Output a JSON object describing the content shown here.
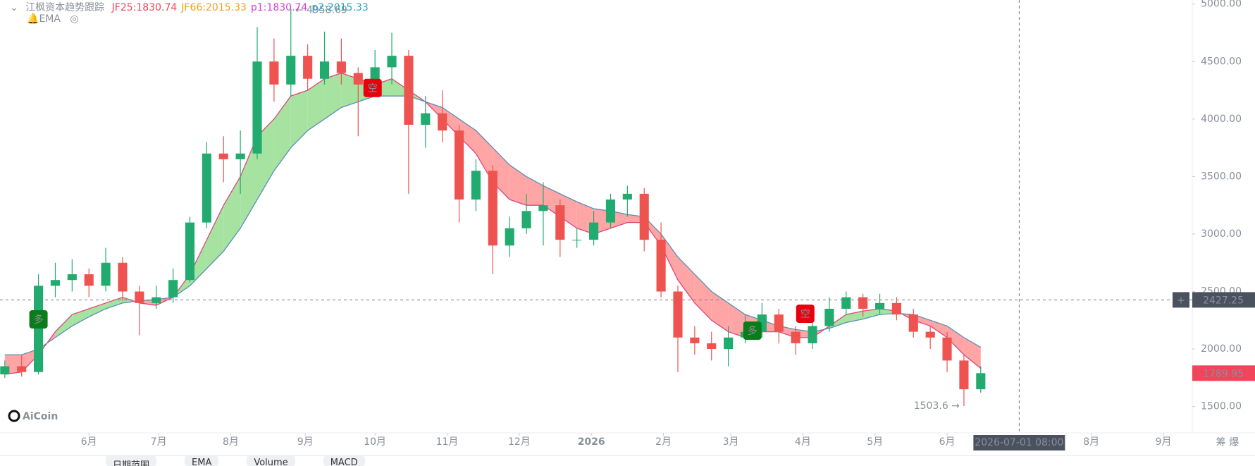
{
  "chart_data": {
    "type": "candlestick",
    "title": "江枫资本趋势跟踪",
    "indicator": "EMA",
    "logo": "AiCoin",
    "up_color": "#22ab6e",
    "down_color": "#ef5350",
    "x": [
      2,
      9,
      16,
      23,
      30,
      37,
      44,
      51,
      58,
      65,
      72,
      79,
      86,
      93,
      100,
      107,
      114,
      121,
      128,
      135,
      142,
      149,
      156,
      163,
      170,
      177,
      184,
      191,
      198,
      205,
      212,
      219,
      226,
      233,
      240,
      247,
      254,
      261,
      268,
      275,
      282,
      289,
      296,
      303,
      310,
      317,
      324,
      331,
      338,
      345,
      352,
      359,
      366,
      373,
      380,
      387,
      394,
      401,
      408
    ],
    "open": [
      1780,
      1850,
      1800,
      2550,
      2600,
      2650,
      2550,
      2750,
      2500,
      2400,
      2450,
      2600,
      3100,
      3700,
      3650,
      3700,
      4500,
      4300,
      4550,
      4350,
      4500,
      4400,
      4300,
      4450,
      4550,
      3950,
      4050,
      3900,
      3300,
      3550,
      2900,
      3050,
      3200,
      3250,
      2950,
      2950,
      3100,
      3300,
      3350,
      2950,
      2500,
      2100,
      2050,
      2000,
      2100,
      2150,
      2300,
      2150,
      2050,
      2200,
      2350,
      2450,
      2350,
      2400,
      2300,
      2150,
      2100,
      1900,
      1650
    ],
    "high": [
      1900,
      1950,
      2650,
      2750,
      2780,
      2700,
      2880,
      2800,
      2550,
      2550,
      2700,
      3150,
      3800,
      3850,
      3900,
      4800,
      4700,
      4958.69,
      4650,
      4760,
      4700,
      4450,
      4600,
      4750,
      4600,
      4200,
      4250,
      3950,
      3650,
      3600,
      3150,
      3350,
      3450,
      3300,
      3050,
      3200,
      3350,
      3420,
      3400,
      3100,
      2550,
      2200,
      2150,
      2200,
      2300,
      2400,
      2350,
      2200,
      2300,
      2450,
      2500,
      2480,
      2480,
      2450,
      2350,
      2200,
      2150,
      1950,
      1850
    ],
    "low": [
      1750,
      1760,
      1780,
      2450,
      2500,
      2450,
      2500,
      2420,
      2120,
      2350,
      2400,
      2580,
      3050,
      3450,
      3350,
      3650,
      4150,
      4200,
      4250,
      4300,
      4300,
      3850,
      4200,
      4300,
      3350,
      3750,
      3800,
      3100,
      3200,
      2650,
      2800,
      3000,
      2900,
      2800,
      2880,
      2900,
      3050,
      3150,
      2850,
      2450,
      1800,
      1950,
      1900,
      1850,
      2050,
      2100,
      2050,
      1950,
      2000,
      2150,
      2300,
      2280,
      2300,
      2250,
      2100,
      2000,
      1800,
      1503.6,
      1620
    ],
    "close": [
      1850,
      1800,
      2550,
      2600,
      2650,
      2550,
      2750,
      2500,
      2400,
      2450,
      2600,
      3100,
      3700,
      3650,
      3700,
      4500,
      4300,
      4550,
      4350,
      4500,
      4400,
      4300,
      4450,
      4550,
      3950,
      4050,
      3900,
      3300,
      3550,
      2900,
      3050,
      3200,
      3250,
      2950,
      2950,
      3100,
      3300,
      3350,
      2950,
      2500,
      2100,
      2050,
      2000,
      2100,
      2150,
      2300,
      2150,
      2050,
      2200,
      2350,
      2450,
      2350,
      2400,
      2300,
      2150,
      2100,
      1900,
      1650,
      1789.95
    ],
    "series": [
      {
        "name": "JF25",
        "color": "#e0457b",
        "values": [
          1780,
          1800,
          1950,
          2150,
          2300,
          2350,
          2400,
          2450,
          2400,
          2380,
          2450,
          2650,
          2950,
          3250,
          3500,
          3850,
          4000,
          4200,
          4250,
          4350,
          4400,
          4350,
          4300,
          4350,
          4250,
          4150,
          4000,
          3850,
          3700,
          3450,
          3300,
          3250,
          3250,
          3150,
          3050,
          3000,
          3050,
          3100,
          3100,
          2900,
          2600,
          2400,
          2250,
          2150,
          2100,
          2150,
          2150,
          2100,
          2100,
          2200,
          2300,
          2330,
          2350,
          2330,
          2250,
          2200,
          2100,
          1950,
          1830.74
        ]
      },
      {
        "name": "JF66",
        "color": "#5a8fb8",
        "values": [
          1950,
          1950,
          2000,
          2100,
          2200,
          2280,
          2350,
          2400,
          2420,
          2430,
          2450,
          2550,
          2700,
          2850,
          3050,
          3300,
          3550,
          3750,
          3900,
          4000,
          4100,
          4150,
          4200,
          4200,
          4200,
          4150,
          4100,
          4000,
          3900,
          3750,
          3600,
          3500,
          3420,
          3350,
          3280,
          3220,
          3200,
          3170,
          3150,
          3000,
          2800,
          2650,
          2500,
          2400,
          2300,
          2250,
          2200,
          2170,
          2150,
          2180,
          2230,
          2260,
          2300,
          2310,
          2300,
          2250,
          2200,
          2100,
          2015.33
        ]
      }
    ],
    "legend": [
      {
        "name": "JF25",
        "color": "#f0455a"
      },
      {
        "name": "JF66",
        "color": "#f0a020"
      },
      {
        "name": "p1",
        "color": "#d63fd6"
      },
      {
        "name": "p2",
        "color": "#27a3c9"
      }
    ],
    "band_up_color": "#a6e3a1",
    "band_down_color": "#ffa5a5",
    "signals": [
      {
        "label": "多",
        "x": 16,
        "y": 2258,
        "color": "#0a7d1a"
      },
      {
        "label": "空",
        "x": 155,
        "y": 4270,
        "color": "#e8000f"
      },
      {
        "label": "多",
        "x": 313,
        "y": 2160,
        "color": "#0a7d1a"
      },
      {
        "label": "空",
        "x": 335,
        "y": 2307,
        "color": "#e8000f"
      }
    ],
    "high_label": {
      "value": 4958.69,
      "x": 121
    },
    "low_label": {
      "value": 1503.6,
      "x": 401
    },
    "current_price": 1789.95,
    "crosshair": {
      "price": 2427.25,
      "x": 424,
      "time": "2026-07-01 08:00"
    },
    "xlim": [
      0,
      496
    ],
    "ylim": [
      1277,
      5035
    ],
    "yticks": [
      {
        "value": 1500,
        "label": "1500.00"
      },
      {
        "value": 2000,
        "label": "2000.00"
      },
      {
        "value": 2500,
        "label": "2500.00"
      },
      {
        "value": 3000,
        "label": "3000.00"
      },
      {
        "value": 3500,
        "label": "3500.00"
      },
      {
        "value": 4000,
        "label": "4000.00"
      },
      {
        "value": 4500,
        "label": "4500.00"
      },
      {
        "value": 5000,
        "label": "5000.00"
      }
    ],
    "xticks": [
      {
        "value": 37,
        "label": "6月"
      },
      {
        "value": 66,
        "label": "7月"
      },
      {
        "value": 96,
        "label": "8月"
      },
      {
        "value": 127,
        "label": "9月"
      },
      {
        "value": 156,
        "label": "10月"
      },
      {
        "value": 186,
        "label": "11月"
      },
      {
        "value": 216,
        "label": "12月"
      },
      {
        "value": 246,
        "label": "2026"
      },
      {
        "value": 276,
        "label": "2月"
      },
      {
        "value": 304,
        "label": "3月"
      },
      {
        "value": 334,
        "label": "4月"
      },
      {
        "value": 364,
        "label": "5月"
      },
      {
        "value": 394,
        "label": "6月"
      },
      {
        "value": 454,
        "label": "8月"
      },
      {
        "value": 484,
        "label": "9月"
      }
    ],
    "axis_tools": "筹 爆",
    "grid": false,
    "toolbar": [
      "日期范围",
      "EMA",
      "Volume",
      "MACD"
    ]
  }
}
